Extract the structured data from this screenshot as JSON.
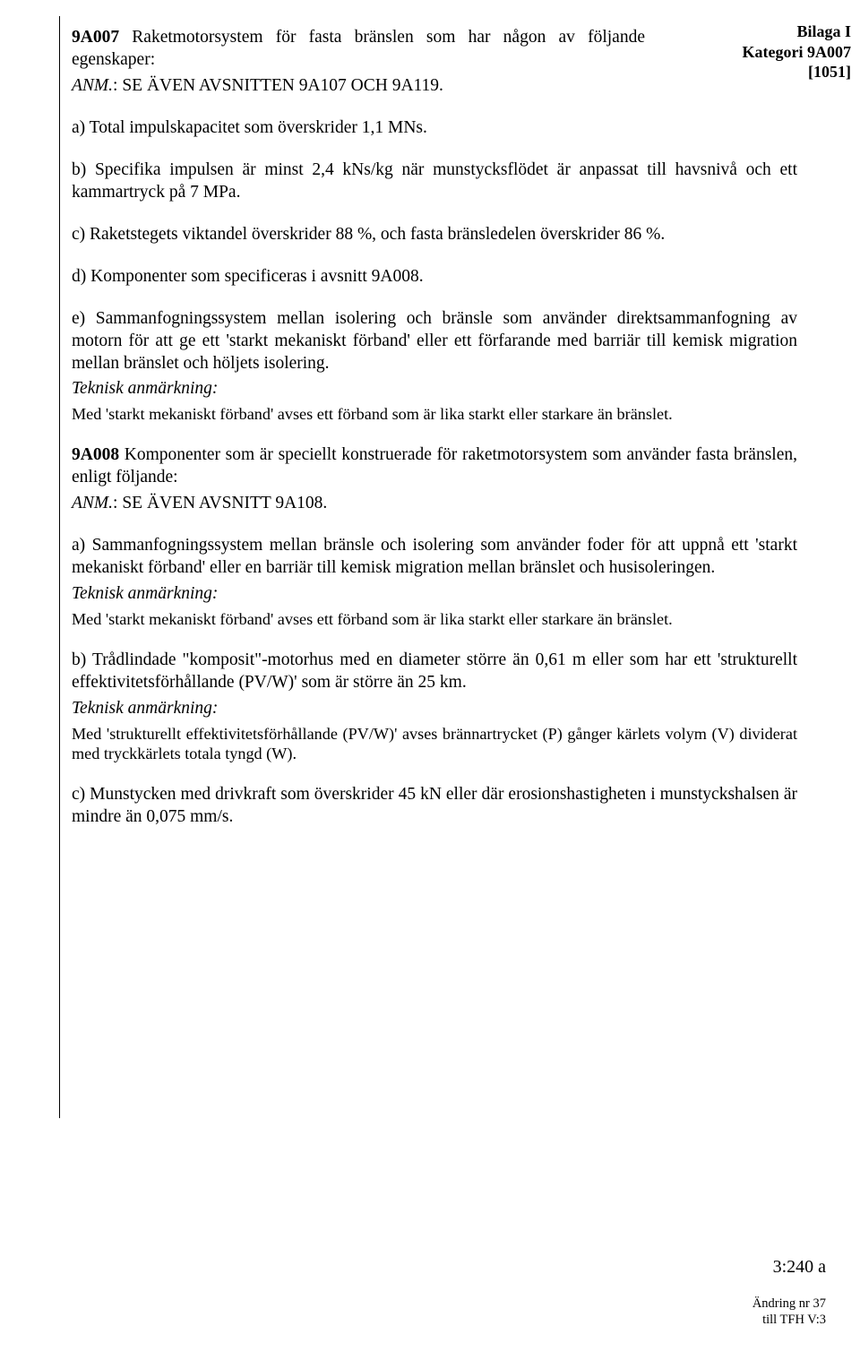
{
  "header": {
    "line1": "Bilaga I",
    "line2": "Kategori 9A007",
    "line3": "[1051]"
  },
  "p1_lead": "9A007",
  "p1": " Raketmotorsystem för fasta bränslen som har någon av följande egenskaper:",
  "p2_label": "ANM.",
  "p2_rest": ": SE ÄVEN AVSNITTEN 9A107 OCH 9A119.",
  "p3": "a) Total impulskapacitet som överskrider 1,1 MNs.",
  "p4": "b) Specifika impulsen är minst 2,4 kNs/kg när munstycksflödet är anpassat till havsnivå och ett kammartryck på 7 MPa.",
  "p5": "c) Raketstegets viktandel överskrider 88 %, och fasta bränsledelen överskrider 86 %.",
  "p6": "d) Komponenter som specificeras i avsnitt 9A008.",
  "p7": "e) Sammanfogningssystem mellan isolering och bränsle som använder direktsammanfogning av motorn för att ge ett 'starkt mekaniskt förband' eller ett förfarande med barriär till kemisk migration mellan bränslet och höljets isolering.",
  "tech_label": "Teknisk anmärkning:",
  "tech1": "Med 'starkt mekaniskt förband' avses ett förband som är lika starkt eller starkare än bränslet.",
  "p8_lead": "9A008",
  "p8": " Komponenter som är speciellt konstruerade för raketmotorsystem som använder fasta bränslen, enligt följande:",
  "p9_label": "ANM.",
  "p9_rest": ": SE ÄVEN AVSNITT 9A108.",
  "p10": "a) Sammanfogningssystem mellan bränsle och isolering som använder foder för att uppnå ett 'starkt mekaniskt förband' eller en barriär till kemisk migration mellan bränslet och husisoleringen.",
  "tech2": "Med 'starkt mekaniskt förband' avses ett förband som är lika starkt eller starkare än bränslet.",
  "p11": "b) Trådlindade \"komposit\"-motorhus med en diameter större än 0,61 m eller som har ett 'strukturellt effektivitetsförhållande (PV/W)' som är större än 25 km.",
  "tech3": "Med 'strukturellt effektivitetsförhållande (PV/W)' avses brännartrycket (P) gånger kärlets volym (V) dividerat med tryckkärlets totala tyngd (W).",
  "p12": "c) Munstycken med drivkraft som överskrider 45 kN eller där erosionshastigheten i munstyckshalsen är mindre än 0,075 mm/s.",
  "footer": {
    "main": "3:240 a",
    "small1": "Ändring nr 37",
    "small2": "till TFH V:3"
  }
}
